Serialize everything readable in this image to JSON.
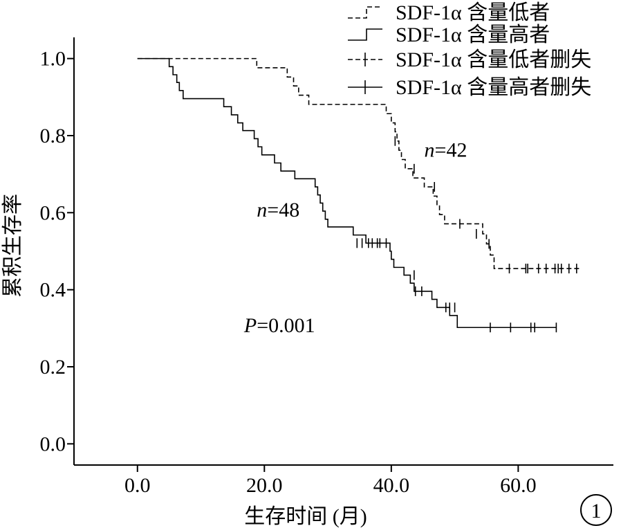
{
  "chart_data": {
    "type": "line",
    "title": "",
    "xlabel": "生存时间 (月)",
    "ylabel": "累积生存率",
    "xlim": [
      -10,
      75
    ],
    "ylim": [
      -0.055,
      1.055
    ],
    "x_ticks": [
      0,
      20,
      40,
      60
    ],
    "x_tick_labels": [
      "0.0",
      "20.0",
      "40.0",
      "60.0"
    ],
    "y_ticks": [
      0,
      0.2,
      0.4,
      0.6,
      0.8,
      1.0
    ],
    "y_tick_labels": [
      "0.0",
      "0.2",
      "0.4",
      "0.6",
      "0.8",
      "1.0"
    ],
    "grid": false,
    "legend_position": "top-right",
    "legend": [
      {
        "label": "SDF-1α 含量低者",
        "style": "dashed-step"
      },
      {
        "label": "SDF-1α 含量高者",
        "style": "solid-step"
      },
      {
        "label": "SDF-1α 含量低者删失",
        "style": "dashed-censor"
      },
      {
        "label": "SDF-1α 含量高者删失",
        "style": "solid-censor"
      }
    ],
    "series": [
      {
        "name": "SDF-1α 含量低者",
        "dash": true,
        "steps": [
          [
            0.0,
            1.0
          ],
          [
            18.8,
            0.976
          ],
          [
            23.6,
            0.952
          ],
          [
            24.6,
            0.929
          ],
          [
            25.4,
            0.905
          ],
          [
            27.0,
            0.881
          ],
          [
            39.2,
            0.857
          ],
          [
            40.0,
            0.833
          ],
          [
            40.6,
            0.81
          ],
          [
            40.9,
            0.786
          ],
          [
            41.2,
            0.762
          ],
          [
            41.6,
            0.738
          ],
          [
            42.2,
            0.714
          ],
          [
            43.4,
            0.69
          ],
          [
            45.2,
            0.667
          ],
          [
            46.6,
            0.643
          ],
          [
            47.2,
            0.619
          ],
          [
            47.6,
            0.595
          ],
          [
            48.4,
            0.571
          ],
          [
            54.4,
            0.545
          ],
          [
            55.0,
            0.519
          ],
          [
            55.6,
            0.49
          ],
          [
            56.2,
            0.455
          ]
        ],
        "end_x": 70.0,
        "censored": [
          [
            40.6,
            0.786
          ],
          [
            43.6,
            0.714
          ],
          [
            46.8,
            0.667
          ],
          [
            50.8,
            0.571
          ],
          [
            53.4,
            0.545
          ],
          [
            55.4,
            0.519
          ],
          [
            58.6,
            0.455
          ],
          [
            61.2,
            0.455
          ],
          [
            61.5,
            0.455
          ],
          [
            63.2,
            0.455
          ],
          [
            64.4,
            0.455
          ],
          [
            65.8,
            0.455
          ],
          [
            66.3,
            0.455
          ],
          [
            66.8,
            0.455
          ],
          [
            68.0,
            0.455
          ],
          [
            69.2,
            0.455
          ]
        ]
      },
      {
        "name": "SDF-1α 含量高者",
        "dash": false,
        "steps": [
          [
            0.0,
            1.0
          ],
          [
            5.0,
            0.979
          ],
          [
            5.6,
            0.958
          ],
          [
            6.2,
            0.938
          ],
          [
            6.6,
            0.917
          ],
          [
            7.2,
            0.896
          ],
          [
            13.6,
            0.875
          ],
          [
            14.8,
            0.854
          ],
          [
            15.8,
            0.833
          ],
          [
            16.6,
            0.813
          ],
          [
            18.4,
            0.792
          ],
          [
            19.0,
            0.771
          ],
          [
            19.6,
            0.75
          ],
          [
            21.6,
            0.729
          ],
          [
            22.6,
            0.708
          ],
          [
            24.8,
            0.688
          ],
          [
            28.0,
            0.667
          ],
          [
            28.4,
            0.646
          ],
          [
            28.8,
            0.625
          ],
          [
            29.2,
            0.604
          ],
          [
            29.6,
            0.583
          ],
          [
            30.0,
            0.563
          ],
          [
            34.0,
            0.542
          ],
          [
            36.0,
            0.521
          ],
          [
            39.8,
            0.5
          ],
          [
            40.0,
            0.479
          ],
          [
            40.4,
            0.458
          ],
          [
            42.0,
            0.438
          ],
          [
            43.0,
            0.417
          ],
          [
            43.6,
            0.396
          ],
          [
            46.4,
            0.375
          ],
          [
            47.2,
            0.354
          ],
          [
            49.2,
            0.333
          ],
          [
            50.4,
            0.302
          ]
        ],
        "end_x": 66.0,
        "censored": [
          [
            34.6,
            0.521
          ],
          [
            35.4,
            0.521
          ],
          [
            36.4,
            0.521
          ],
          [
            37.0,
            0.521
          ],
          [
            37.8,
            0.521
          ],
          [
            38.2,
            0.521
          ],
          [
            39.2,
            0.521
          ],
          [
            43.6,
            0.438
          ],
          [
            43.8,
            0.396
          ],
          [
            44.8,
            0.396
          ],
          [
            48.6,
            0.354
          ],
          [
            49.2,
            0.354
          ],
          [
            50.0,
            0.354
          ],
          [
            55.6,
            0.302
          ],
          [
            58.8,
            0.302
          ],
          [
            62.0,
            0.302
          ],
          [
            62.6,
            0.302
          ],
          [
            66.0,
            0.302
          ]
        ]
      }
    ],
    "annotations": [
      {
        "text": "n=42",
        "italic_prefix": "n",
        "rest": "=42",
        "x": 45.2,
        "y": 0.745
      },
      {
        "text": "n=48",
        "italic_prefix": "n",
        "rest": "=48",
        "x": 18.8,
        "y": 0.59
      },
      {
        "text": "P=0.001",
        "italic_prefix": "P",
        "rest": "=0.001",
        "x": 16.8,
        "y": 0.29
      }
    ],
    "figure_number": "1"
  }
}
